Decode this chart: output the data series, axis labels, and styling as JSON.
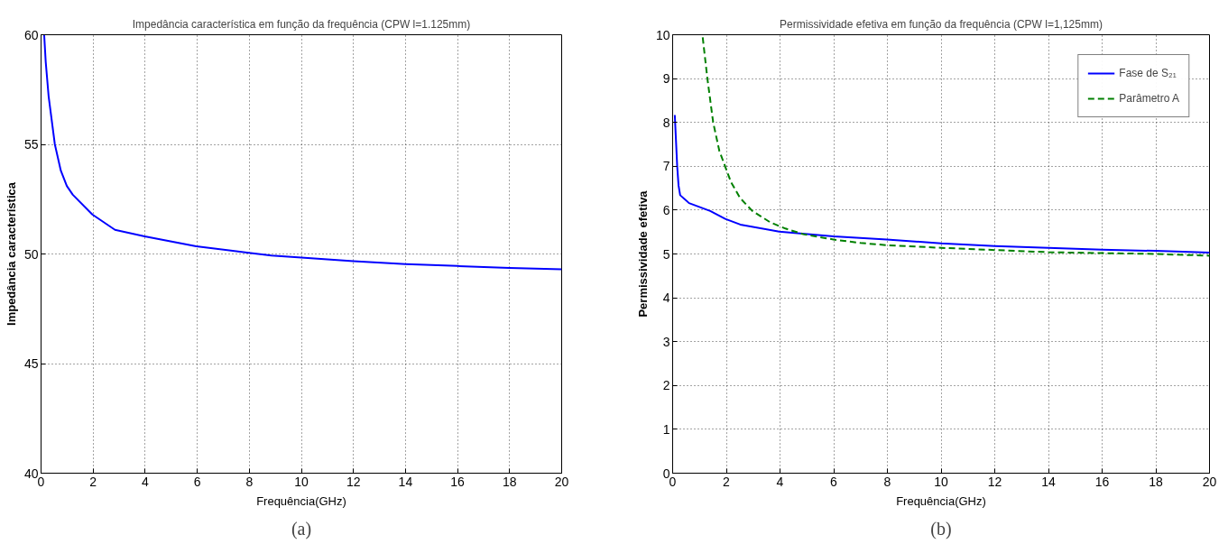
{
  "chart_data": [
    {
      "type": "line",
      "title": "Impedância característica em função da frequência (CPW l=1.125mm)",
      "xlabel": "Frequência(GHz)",
      "ylabel": "Impedância característica",
      "annotations": [
        "(a)"
      ],
      "xlim": [
        0,
        20
      ],
      "ylim": [
        40,
        60
      ],
      "xticks": [
        0,
        2,
        4,
        6,
        8,
        10,
        12,
        14,
        16,
        18,
        20
      ],
      "yticks": [
        40,
        45,
        50,
        55,
        60
      ],
      "grid": true,
      "line_style": "solid",
      "series": [
        {
          "color": "#0000ff",
          "x": [
            0.12,
            0.18,
            0.29,
            0.53,
            0.76,
            0.99,
            1.22,
            1.97,
            2.84,
            3.98,
            5.96,
            7.98,
            8.85,
            10,
            12,
            14,
            16,
            18,
            20
          ],
          "values": [
            60.0,
            58.75,
            57.2,
            55.0,
            53.8,
            53.1,
            52.7,
            51.8,
            51.1,
            50.8,
            50.35,
            50.05,
            49.93,
            49.84,
            49.67,
            49.54,
            49.45,
            49.36,
            49.3
          ]
        }
      ]
    },
    {
      "type": "line",
      "title": "Permissividade efetiva em função da frequência (CPW l=1,125mm)",
      "xlabel": "Frequência(GHz)",
      "ylabel": "Permissividade efetiva",
      "annotations": [
        "(b)"
      ],
      "xlim": [
        0,
        20
      ],
      "ylim": [
        0,
        10
      ],
      "xticks": [
        0,
        2,
        4,
        6,
        8,
        10,
        12,
        14,
        16,
        18,
        20
      ],
      "yticks": [
        0,
        1,
        2,
        3,
        4,
        5,
        6,
        7,
        8,
        9,
        10
      ],
      "grid": true,
      "legend": "top right",
      "series": [
        {
          "name": "Fase de S₂₁",
          "color": "#0000ff",
          "line_style": "solid",
          "x": [
            0.08,
            0.17,
            0.22,
            0.28,
            0.61,
            1.4,
            1.96,
            2.52,
            3.97,
            5.99,
            7.98,
            10,
            12,
            14,
            16,
            18,
            20
          ],
          "values": [
            8.17,
            6.99,
            6.56,
            6.34,
            6.16,
            5.98,
            5.8,
            5.67,
            5.51,
            5.4,
            5.33,
            5.24,
            5.18,
            5.14,
            5.1,
            5.07,
            5.03
          ]
        },
        {
          "name": "Parâmetro A",
          "color": "#008000",
          "line_style": "dashed",
          "x": [
            1.12,
            1.29,
            1.51,
            1.74,
            1.96,
            2.18,
            2.52,
            2.97,
            3.64,
            4.2,
            4.87,
            5.99,
            7.0,
            7.98,
            10,
            12,
            14,
            16,
            18,
            20
          ],
          "values": [
            9.94,
            9.02,
            8.0,
            7.35,
            6.99,
            6.63,
            6.27,
            5.98,
            5.72,
            5.58,
            5.45,
            5.33,
            5.25,
            5.2,
            5.14,
            5.09,
            5.04,
            5.02,
            5.0,
            4.96
          ]
        }
      ]
    }
  ]
}
